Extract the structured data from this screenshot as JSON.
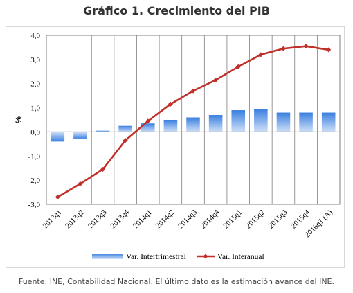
{
  "chart_data": {
    "type": "bar",
    "title": "Gráfico 1. Crecimiento del PIB",
    "ylabel": "%",
    "xlabel": "",
    "ylim": [
      -3.0,
      4.0
    ],
    "yticks": [
      "4,0",
      "3,0",
      "2,0",
      "1,0",
      "0,0",
      "-1,0",
      "-2,0",
      "-3,0"
    ],
    "categories": [
      "2013q1",
      "2013q2",
      "2013q3",
      "2013q4",
      "2014q1",
      "2014q2",
      "2014q3",
      "2014q4",
      "2015q1",
      "2015q2",
      "2015q3",
      "2015q4",
      "2016q1 (A)"
    ],
    "series": [
      {
        "name": "Var. Intertrimestral",
        "type": "bar",
        "color": "#4f8ee0",
        "values": [
          -0.4,
          -0.3,
          0.05,
          0.25,
          0.35,
          0.5,
          0.6,
          0.7,
          0.9,
          0.95,
          0.8,
          0.8,
          0.8
        ]
      },
      {
        "name": "Var. Interanual",
        "type": "line",
        "color": "#c0302b",
        "values": [
          -2.7,
          -2.15,
          -1.55,
          -0.35,
          0.45,
          1.15,
          1.7,
          2.15,
          2.7,
          3.2,
          3.45,
          3.55,
          3.4
        ]
      }
    ],
    "grid": "vertical",
    "legend": "bottom"
  },
  "source": "Fuente: INE, Contabilidad Nacional. El último dato es la estimación avance del INE."
}
